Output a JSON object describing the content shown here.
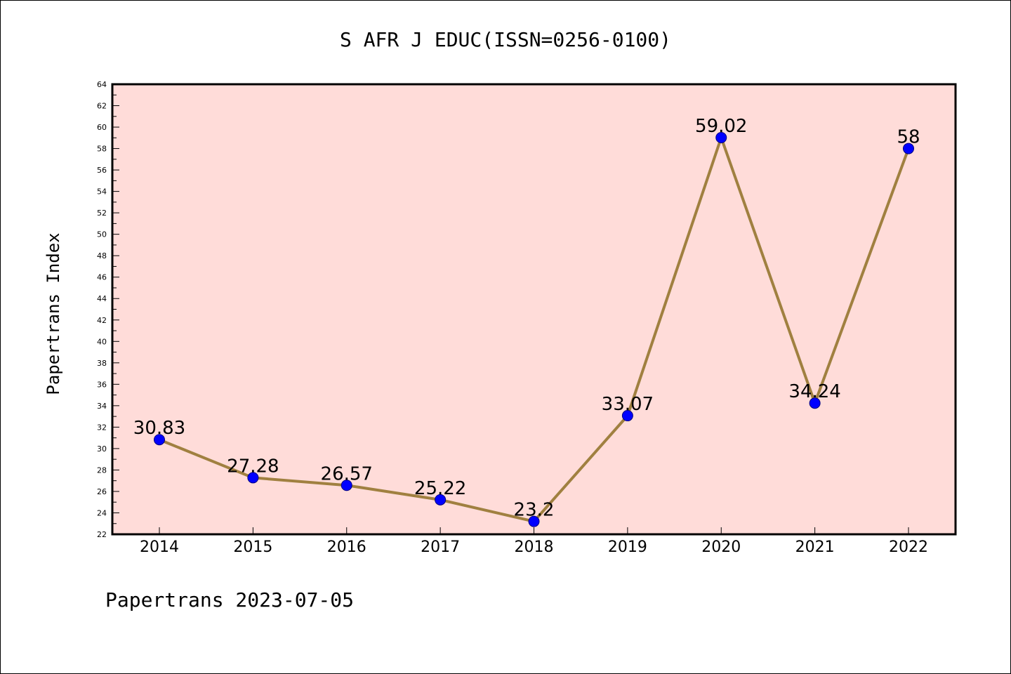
{
  "chart_data": {
    "type": "line",
    "title": "S AFR J EDUC(ISSN=0256-0100)",
    "ylabel": "Papertrans Index",
    "xlabel": "",
    "footer": "Papertrans 2023-07-05",
    "categories": [
      "2014",
      "2015",
      "2016",
      "2017",
      "2018",
      "2019",
      "2020",
      "2021",
      "2022"
    ],
    "series": [
      {
        "values": [
          30.83,
          27.28,
          26.57,
          25.22,
          23.2,
          33.07,
          59.02,
          34.24,
          58
        ],
        "labels": [
          "30.83",
          "27.28",
          "26.57",
          "25.22",
          "23.2",
          "33.07",
          "59.02",
          "34.24",
          "58"
        ]
      }
    ],
    "ylim": [
      22,
      64
    ],
    "ytick_step": 2,
    "grid": false,
    "legend": "none",
    "colors": {
      "plot_background": "#ffdcd9",
      "line": "#a08040",
      "marker": "#0000ff",
      "marker_edge": "#000080"
    }
  }
}
